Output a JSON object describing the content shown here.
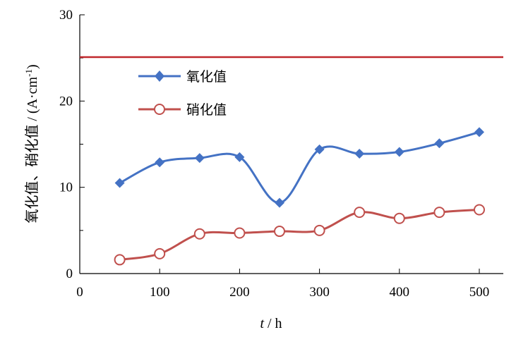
{
  "chart_data": {
    "type": "line",
    "xlabel_var": "t",
    "xlabel_unit": " / h",
    "ylabel_main": "氧化值、硝化值 / (A·cm",
    "ylabel_sup": "-1",
    "ylabel_end": ")",
    "xlim": [
      0,
      500
    ],
    "ylim": [
      0,
      30
    ],
    "xticks": [
      0,
      100,
      200,
      300,
      400,
      500
    ],
    "yticks": [
      0,
      10,
      20,
      30
    ],
    "grid": false,
    "legend_position": "upper-left",
    "series": [
      {
        "name": "氧化值",
        "color": "#4472c4",
        "marker": "diamond",
        "x": [
          50,
          100,
          150,
          200,
          250,
          300,
          350,
          400,
          450,
          500
        ],
        "y": [
          10.5,
          12.9,
          13.4,
          13.5,
          8.2,
          14.4,
          13.9,
          14.1,
          15.1,
          16.4
        ]
      },
      {
        "name": "硝化值",
        "color": "#c0504d",
        "marker": "circle-open",
        "x": [
          50,
          100,
          150,
          200,
          250,
          300,
          350,
          400,
          450,
          500
        ],
        "y": [
          1.6,
          2.3,
          4.6,
          4.7,
          4.9,
          5.0,
          7.1,
          6.4,
          7.1,
          7.4
        ]
      }
    ],
    "reference_lines": [
      {
        "y": 25.1,
        "color": "#c0282d"
      }
    ]
  }
}
